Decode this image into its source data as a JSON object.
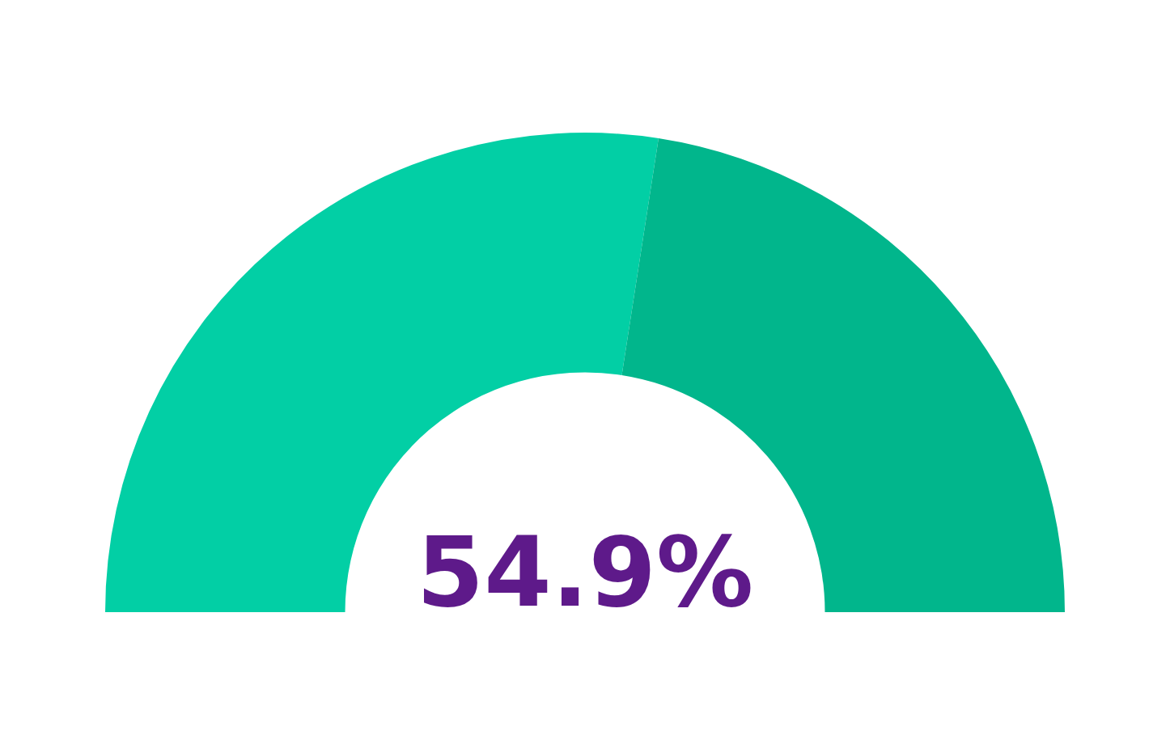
{
  "chart_data": {
    "type": "donut",
    "categories": [
      null,
      null
    ],
    "values": [
      54.9,
      45.1
    ],
    "colors": [
      "#02cfa5",
      "#01b68c"
    ],
    "annotations": [
      "54.9%"
    ],
    "legend": false
  }
}
